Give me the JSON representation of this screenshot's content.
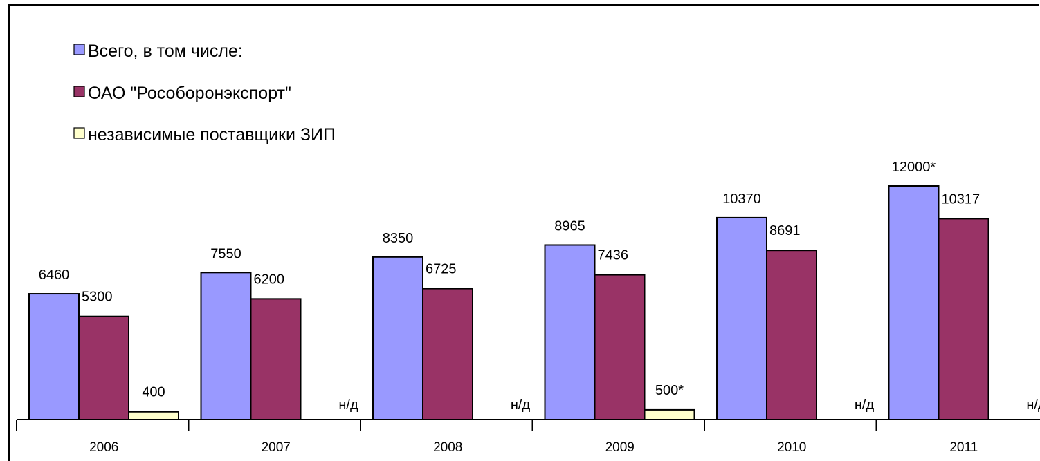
{
  "chart_data": {
    "type": "bar",
    "categories": [
      "2006",
      "2007",
      "2008",
      "2009",
      "2010",
      "2011"
    ],
    "series": [
      {
        "name": "Всего, в том числе:",
        "color": "#9999ff",
        "values": [
          6460,
          7550,
          8350,
          8965,
          10370,
          12000
        ],
        "labels": [
          "6460",
          "7550",
          "8350",
          "8965",
          "10370",
          "12000*"
        ]
      },
      {
        "name": "ОАО \"Рособоронэкспорт\"",
        "color": "#993366",
        "values": [
          5300,
          6200,
          6725,
          7436,
          8691,
          10317
        ],
        "labels": [
          "5300",
          "6200",
          "6725",
          "7436",
          "8691",
          "10317"
        ]
      },
      {
        "name": "независимые поставщики ЗИП",
        "color": "#ffffcc",
        "values": [
          400,
          null,
          null,
          500,
          null,
          null
        ],
        "labels": [
          "400",
          "н/д",
          "н/д",
          "500*",
          "н/д",
          "н/д"
        ]
      }
    ],
    "ylim": [
      0,
      12000
    ],
    "grid": false,
    "legend_position": "top-left"
  }
}
